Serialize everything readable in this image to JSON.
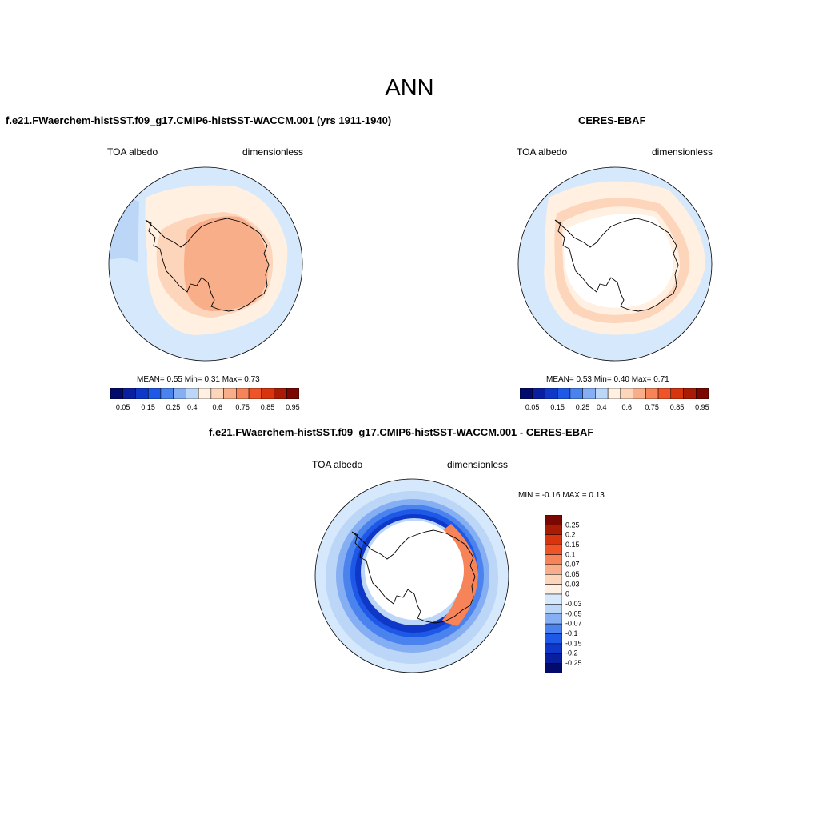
{
  "page_title": "ANN",
  "colors": {
    "cmap": [
      "#020a6b",
      "#0a1ea0",
      "#0f37c8",
      "#1e58e6",
      "#4a82ee",
      "#86aef2",
      "#bcd6f7",
      "#fff0e2",
      "#fcd5bb",
      "#f9ae8a",
      "#f68458",
      "#ef5429",
      "#d8350f",
      "#a81c05",
      "#7a0701"
    ],
    "diff_cmap": [
      "#020a6b",
      "#0a1ea0",
      "#0f37c8",
      "#1e58e6",
      "#4a82ee",
      "#86aef2",
      "#bcd6f7",
      "#d6e8fb",
      "#fff0e2",
      "#fcd5bb",
      "#f9ae8a",
      "#f68458",
      "#ef5429",
      "#d8350f",
      "#a81c05",
      "#7a0701"
    ],
    "ocean_light": "#d6e8fb",
    "land_outline": "#000000"
  },
  "chart_data": [
    {
      "type": "heatmap",
      "projection": "south-polar-stereographic",
      "title": "f.e21.FWaerchem-histSST.f09_g17.CMIP6-histSST-WACCM.001 (yrs 1911-1940)",
      "left_label": "TOA albedo",
      "right_label": "dimensionless",
      "stats_text": "MEAN=   0.55  Min=   0.31  Max=   0.73",
      "mean": 0.55,
      "min": 0.31,
      "max": 0.73,
      "colorbar_levels": [
        0.05,
        0.1,
        0.15,
        0.2,
        0.25,
        0.3,
        0.4,
        0.5,
        0.6,
        0.7,
        0.75,
        0.8,
        0.85,
        0.9,
        0.95
      ],
      "colorbar_labels": [
        "0.05",
        "0.15",
        "0.25",
        "0.4",
        "0.6",
        "0.75",
        "0.85",
        "0.95"
      ]
    },
    {
      "type": "heatmap",
      "projection": "south-polar-stereographic",
      "title": "CERES-EBAF",
      "left_label": "TOA albedo",
      "right_label": "dimensionless",
      "stats_text": "MEAN=   0.53  Min=   0.40  Max=   0.71",
      "mean": 0.53,
      "min": 0.4,
      "max": 0.71,
      "colorbar_levels": [
        0.05,
        0.1,
        0.15,
        0.2,
        0.25,
        0.3,
        0.4,
        0.5,
        0.6,
        0.7,
        0.75,
        0.8,
        0.85,
        0.9,
        0.95
      ],
      "colorbar_labels": [
        "0.05",
        "0.15",
        "0.25",
        "0.4",
        "0.6",
        "0.75",
        "0.85",
        "0.95"
      ]
    },
    {
      "type": "heatmap",
      "projection": "south-polar-stereographic",
      "title": "f.e21.FWaerchem-histSST.f09_g17.CMIP6-histSST-WACCM.001 - CERES-EBAF",
      "left_label": "TOA albedo",
      "right_label": "dimensionless",
      "stats_text": "MIN =  -0.16 MAX =   0.13",
      "min": -0.16,
      "max": 0.13,
      "colorbar_labels": [
        "0.25",
        "0.2",
        "0.15",
        "0.1",
        "0.07",
        "0.05",
        "0.03",
        "0",
        "-0.03",
        "-0.05",
        "-0.07",
        "-0.1",
        "-0.15",
        "-0.2",
        "-0.25"
      ]
    }
  ]
}
